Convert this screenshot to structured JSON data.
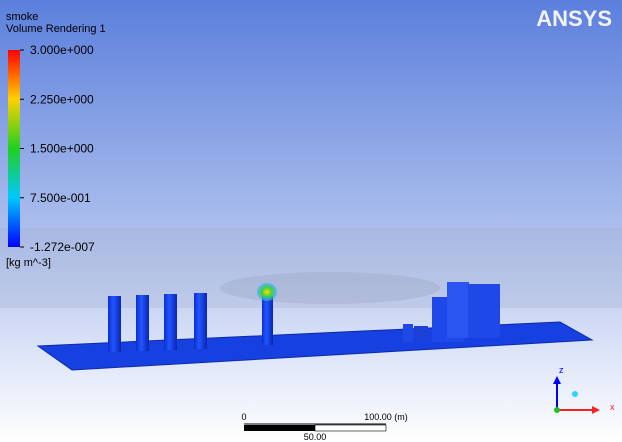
{
  "logo": "ANSYS",
  "legend": {
    "variable": "smoke",
    "title": "Volume Rendering 1",
    "ticks": [
      "3.000e+000",
      "2.250e+000",
      "1.500e+000",
      "7.500e-001",
      "-1.272e-007"
    ],
    "unit": "[kg m^-3]"
  },
  "scale_bar": {
    "start": "0",
    "end": "100.00 (m)",
    "mid": "50.00"
  },
  "triad": {
    "z": "z",
    "x": "x"
  }
}
